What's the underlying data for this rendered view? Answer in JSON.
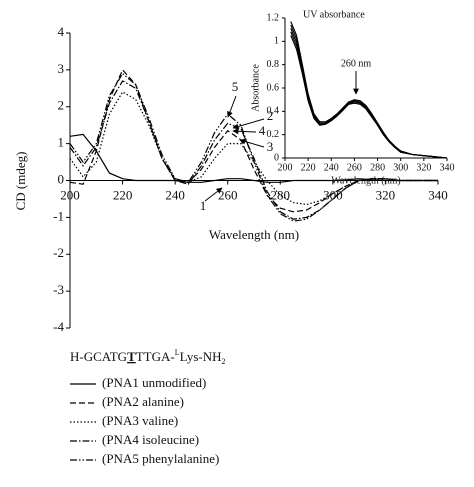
{
  "chart_data": [
    {
      "type": "line",
      "ylabel": "CD (mdeg)",
      "xlabel": "Wavelength (nm)",
      "x": [
        200,
        205,
        210,
        215,
        220,
        225,
        230,
        235,
        240,
        245,
        250,
        255,
        260,
        265,
        270,
        275,
        280,
        285,
        290,
        295,
        300,
        305,
        310,
        315,
        320,
        325,
        330,
        335,
        340
      ],
      "series": [
        {
          "name": "(PNA1 unmodified)",
          "color": "#000",
          "dash": "none",
          "values": [
            1.2,
            1.25,
            0.8,
            0.2,
            0.05,
            0,
            0,
            0,
            0,
            -0.05,
            -0.05,
            0,
            0.05,
            0.05,
            0,
            -0.05,
            -0.05,
            0,
            0,
            0,
            0,
            0.02,
            0.05,
            0.02,
            0,
            0,
            0,
            0,
            0
          ]
        },
        {
          "name": "(PNA2 alanine)",
          "color": "#000",
          "dash": "6,3",
          "values": [
            -0.05,
            -0.1,
            0.8,
            2.2,
            3.0,
            2.6,
            1.6,
            0.6,
            0,
            -0.05,
            0.3,
            0.9,
            1.35,
            1.1,
            0.3,
            -0.4,
            -0.75,
            -0.85,
            -0.8,
            -0.6,
            -0.35,
            -0.15,
            0,
            0.05,
            0.05,
            0,
            0,
            0,
            0
          ]
        },
        {
          "name": "(PNA3 valine)",
          "color": "#000",
          "dash": "1.5,2",
          "values": [
            0.6,
            0.1,
            0.5,
            1.8,
            2.4,
            2.2,
            1.5,
            0.6,
            0.05,
            -0.05,
            0.1,
            0.6,
            1.0,
            1.0,
            0.5,
            0,
            -0.4,
            -0.6,
            -0.65,
            -0.55,
            -0.35,
            -0.15,
            0,
            0.05,
            0.05,
            0,
            0,
            0,
            0
          ]
        },
        {
          "name": "(PNA4 isoleucine)",
          "color": "#000",
          "dash": "7,2,1.5,2",
          "values": [
            0.9,
            0.4,
            0.9,
            2.1,
            2.7,
            2.5,
            1.6,
            0.6,
            0,
            -0.1,
            0.4,
            1.1,
            1.55,
            1.4,
            0.6,
            -0.3,
            -0.85,
            -1.05,
            -1.0,
            -0.8,
            -0.5,
            -0.2,
            0,
            0.05,
            0.05,
            0,
            0,
            0,
            0
          ]
        },
        {
          "name": "(PNA5 phenylalanine)",
          "color": "#000",
          "dash": "7,2,1.5,2,1.5,2",
          "values": [
            1.0,
            0.5,
            1.0,
            2.3,
            2.9,
            2.6,
            1.7,
            0.7,
            0.05,
            -0.05,
            0.5,
            1.3,
            1.8,
            1.5,
            0.5,
            -0.4,
            -0.9,
            -1.1,
            -1.05,
            -0.8,
            -0.5,
            -0.2,
            0,
            0.05,
            0.05,
            0,
            0,
            0,
            0
          ]
        }
      ],
      "xlim": [
        200,
        340
      ],
      "xticks": [
        200,
        220,
        240,
        260,
        280,
        300,
        320,
        340
      ],
      "ylim": [
        -4,
        4
      ],
      "yticks": [
        -4,
        -3,
        -2,
        -1,
        0,
        1,
        2,
        3,
        4
      ],
      "annotations": [
        "1",
        "2",
        "3",
        "4",
        "5"
      ],
      "legend_title_parts": [
        "H-GCATG",
        "T",
        "TTGA-",
        "L",
        "Lys-NH",
        "2"
      ]
    },
    {
      "type": "line",
      "title": "UV absorbance",
      "ylabel": "Absorbance",
      "xlabel": "Wavelength (nm)",
      "annotation": "260 nm",
      "x": [
        205,
        210,
        215,
        220,
        225,
        230,
        235,
        240,
        245,
        250,
        255,
        260,
        265,
        270,
        275,
        280,
        285,
        290,
        295,
        300,
        310,
        320,
        330,
        340
      ],
      "series": [
        {
          "color": "#000",
          "values": [
            1.17,
            1.05,
            0.8,
            0.55,
            0.38,
            0.31,
            0.31,
            0.34,
            0.38,
            0.43,
            0.48,
            0.5,
            0.49,
            0.45,
            0.38,
            0.3,
            0.22,
            0.15,
            0.1,
            0.06,
            0.03,
            0.02,
            0.01,
            0
          ]
        },
        {
          "color": "#000",
          "values": [
            1.14,
            1.02,
            0.78,
            0.53,
            0.37,
            0.3,
            0.3,
            0.33,
            0.37,
            0.42,
            0.47,
            0.49,
            0.48,
            0.44,
            0.37,
            0.29,
            0.21,
            0.15,
            0.1,
            0.06,
            0.03,
            0.02,
            0.01,
            0
          ]
        },
        {
          "color": "#000",
          "values": [
            1.11,
            0.99,
            0.76,
            0.52,
            0.36,
            0.3,
            0.3,
            0.33,
            0.37,
            0.42,
            0.47,
            0.49,
            0.48,
            0.44,
            0.37,
            0.29,
            0.21,
            0.14,
            0.09,
            0.06,
            0.03,
            0.02,
            0.01,
            0
          ]
        },
        {
          "color": "#000",
          "values": [
            1.08,
            0.96,
            0.74,
            0.5,
            0.35,
            0.29,
            0.29,
            0.32,
            0.36,
            0.41,
            0.46,
            0.48,
            0.47,
            0.43,
            0.36,
            0.28,
            0.2,
            0.14,
            0.09,
            0.05,
            0.03,
            0.02,
            0.01,
            0
          ]
        },
        {
          "color": "#000",
          "values": [
            1.05,
            0.93,
            0.72,
            0.49,
            0.34,
            0.28,
            0.29,
            0.32,
            0.36,
            0.41,
            0.46,
            0.47,
            0.46,
            0.42,
            0.35,
            0.28,
            0.2,
            0.14,
            0.09,
            0.05,
            0.03,
            0.02,
            0.01,
            0
          ]
        }
      ],
      "xlim": [
        200,
        340
      ],
      "xticks": [
        200,
        220,
        240,
        260,
        280,
        300,
        320,
        340
      ],
      "ylim": [
        0,
        1.2
      ],
      "yticks": [
        0,
        0.2,
        0.4,
        0.6,
        0.8,
        1,
        1.2
      ]
    }
  ]
}
